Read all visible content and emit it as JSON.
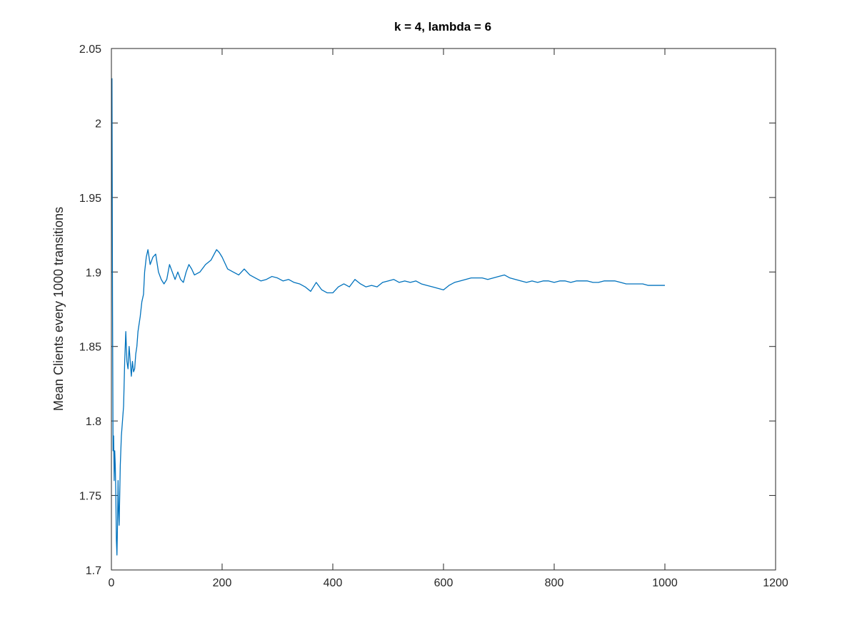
{
  "chart_data": {
    "type": "line",
    "title": "k = 4, lambda = 6",
    "xlabel": "",
    "ylabel": "Mean Clients every 1000 transitions",
    "xlim": [
      0,
      1200
    ],
    "ylim": [
      1.7,
      2.05
    ],
    "xticks": [
      0,
      200,
      400,
      600,
      800,
      1000,
      1200
    ],
    "xtick_labels": [
      "0",
      "200",
      "400",
      "600",
      "800",
      "1000",
      "1200"
    ],
    "yticks": [
      1.7,
      1.75,
      1.8,
      1.85,
      1.9,
      1.95,
      2.0,
      2.05
    ],
    "ytick_labels": [
      "1.7",
      "1.75",
      "1.8",
      "1.85",
      "1.9",
      "1.95",
      "2",
      "2.05"
    ],
    "grid": false,
    "colors": {
      "series": "#0072bd",
      "axes": "#262626"
    },
    "series": [
      {
        "x": [
          1,
          2,
          3,
          4,
          5,
          6,
          7,
          8,
          9,
          10,
          11,
          12,
          13,
          14,
          15,
          16,
          18,
          20,
          22,
          24,
          26,
          28,
          30,
          32,
          34,
          36,
          38,
          40,
          42,
          44,
          46,
          48,
          50,
          52,
          55,
          58,
          60,
          63,
          66,
          70,
          75,
          80,
          85,
          90,
          95,
          100,
          105,
          110,
          115,
          120,
          125,
          130,
          135,
          140,
          145,
          150,
          160,
          170,
          180,
          190,
          195,
          200,
          210,
          220,
          230,
          240,
          250,
          260,
          270,
          280,
          290,
          300,
          310,
          320,
          330,
          340,
          350,
          360,
          370,
          380,
          390,
          400,
          410,
          420,
          430,
          440,
          450,
          460,
          470,
          480,
          490,
          500,
          510,
          520,
          530,
          540,
          550,
          560,
          570,
          580,
          590,
          600,
          610,
          620,
          630,
          640,
          650,
          660,
          670,
          680,
          690,
          700,
          710,
          720,
          730,
          740,
          750,
          760,
          770,
          780,
          790,
          800,
          810,
          820,
          830,
          840,
          850,
          860,
          870,
          880,
          890,
          900,
          910,
          920,
          930,
          940,
          950,
          960,
          970,
          980,
          990,
          1000
        ],
        "y": [
          2.03,
          1.88,
          1.78,
          1.79,
          1.76,
          1.78,
          1.77,
          1.75,
          1.72,
          1.71,
          1.73,
          1.76,
          1.74,
          1.73,
          1.75,
          1.77,
          1.79,
          1.8,
          1.81,
          1.84,
          1.86,
          1.84,
          1.835,
          1.85,
          1.84,
          1.83,
          1.84,
          1.833,
          1.835,
          1.845,
          1.85,
          1.86,
          1.865,
          1.87,
          1.88,
          1.885,
          1.9,
          1.91,
          1.915,
          1.905,
          1.91,
          1.912,
          1.9,
          1.895,
          1.892,
          1.895,
          1.905,
          1.9,
          1.895,
          1.9,
          1.895,
          1.893,
          1.9,
          1.905,
          1.902,
          1.898,
          1.9,
          1.905,
          1.908,
          1.915,
          1.913,
          1.91,
          1.902,
          1.9,
          1.898,
          1.902,
          1.898,
          1.896,
          1.894,
          1.895,
          1.897,
          1.896,
          1.894,
          1.895,
          1.893,
          1.892,
          1.89,
          1.887,
          1.893,
          1.888,
          1.886,
          1.886,
          1.89,
          1.892,
          1.89,
          1.895,
          1.892,
          1.89,
          1.891,
          1.89,
          1.893,
          1.894,
          1.895,
          1.893,
          1.894,
          1.893,
          1.894,
          1.892,
          1.891,
          1.89,
          1.889,
          1.888,
          1.891,
          1.893,
          1.894,
          1.895,
          1.896,
          1.896,
          1.896,
          1.895,
          1.896,
          1.897,
          1.898,
          1.896,
          1.895,
          1.894,
          1.893,
          1.894,
          1.893,
          1.894,
          1.894,
          1.893,
          1.894,
          1.894,
          1.893,
          1.894,
          1.894,
          1.894,
          1.893,
          1.893,
          1.894,
          1.894,
          1.894,
          1.893,
          1.892,
          1.892,
          1.892,
          1.892,
          1.891,
          1.891,
          1.891,
          1.891
        ]
      }
    ]
  }
}
